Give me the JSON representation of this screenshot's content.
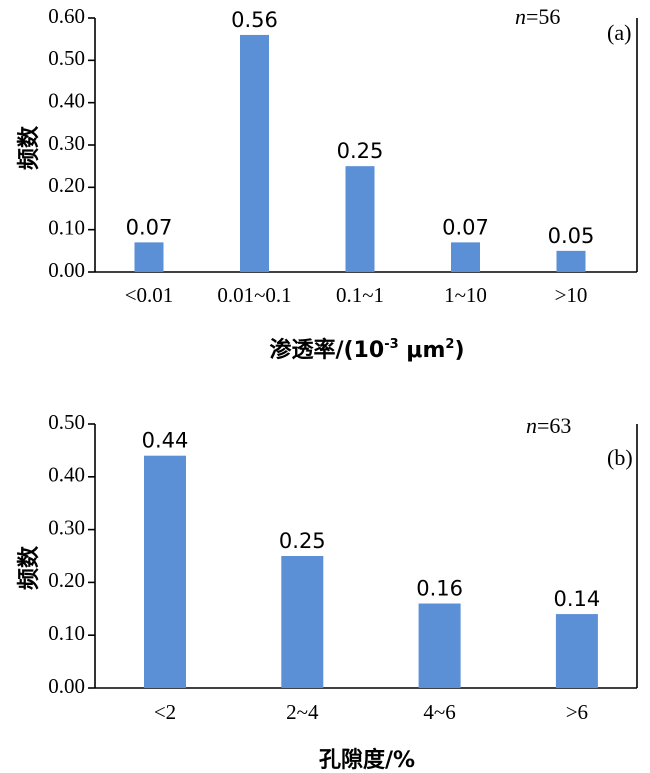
{
  "chart_data": [
    {
      "type": "bar",
      "panel": "(a)",
      "note_prefix": "n",
      "note_value": "=56",
      "categories": [
        "<0.01",
        "0.01~0.1",
        "0.1~1",
        "1~10",
        ">10"
      ],
      "values": [
        0.07,
        0.56,
        0.25,
        0.07,
        0.05
      ],
      "value_labels": [
        "0.07",
        "0.56",
        "0.25",
        "0.07",
        "0.05"
      ],
      "ylabel": "频数",
      "xlabel_main": "渗透率/(10",
      "xlabel_sup1": "-3",
      "xlabel_mid": " μm",
      "xlabel_sup2": "2",
      "xlabel_end": ")",
      "ylim": [
        0,
        0.6
      ],
      "yticks": [
        "0.00",
        "0.10",
        "0.20",
        "0.30",
        "0.40",
        "0.50",
        "0.60"
      ],
      "bar_color": "#5b8fd6",
      "grid": false
    },
    {
      "type": "bar",
      "panel": "(b)",
      "note_prefix": "n",
      "note_value": "=63",
      "categories": [
        "<2",
        "2~4",
        "4~6",
        ">6"
      ],
      "values": [
        0.44,
        0.25,
        0.16,
        0.14
      ],
      "value_labels": [
        "0.44",
        "0.25",
        "0.16",
        "0.14"
      ],
      "ylabel": "频数",
      "xlabel": "孔隙度/%",
      "ylim": [
        0,
        0.5
      ],
      "yticks": [
        "0.00",
        "0.10",
        "0.20",
        "0.30",
        "0.40",
        "0.50"
      ],
      "bar_color": "#5b8fd6",
      "grid": false
    }
  ]
}
